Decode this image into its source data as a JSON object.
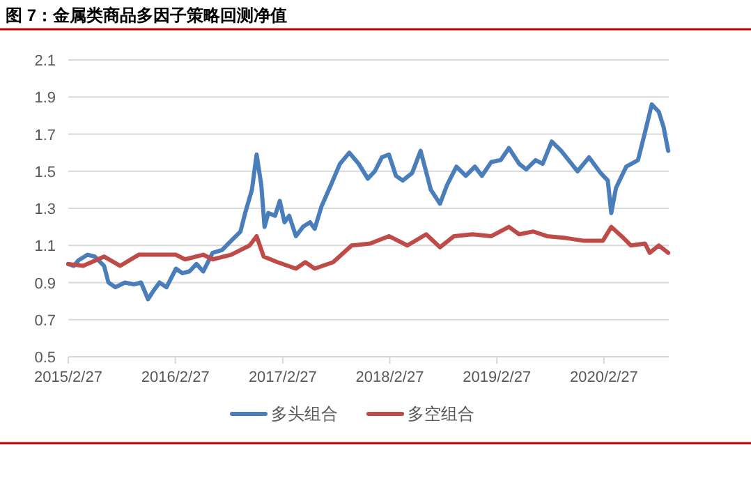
{
  "chart_data": {
    "type": "line",
    "title": "图 7：金属类商品多因子策略回测净值",
    "xlim": [
      "2015-02-27",
      "2020-10-05"
    ],
    "xticks": [
      {
        "value": "2015-02-27",
        "label": "2015/2/27"
      },
      {
        "value": "2016-02-27",
        "label": "2016/2/27"
      },
      {
        "value": "2017-02-27",
        "label": "2017/2/27"
      },
      {
        "value": "2018-02-27",
        "label": "2018/2/27"
      },
      {
        "value": "2019-02-27",
        "label": "2019/2/27"
      },
      {
        "value": "2020-02-27",
        "label": "2020/2/27"
      }
    ],
    "ylim": [
      0.5,
      2.1
    ],
    "yticks": [
      {
        "value": 0.5,
        "label": "0.5"
      },
      {
        "value": 0.7,
        "label": "0.7"
      },
      {
        "value": 0.9,
        "label": "0.9"
      },
      {
        "value": 1.1,
        "label": "1.1"
      },
      {
        "value": 1.3,
        "label": "1.3"
      },
      {
        "value": 1.5,
        "label": "1.5"
      },
      {
        "value": 1.7,
        "label": "1.7"
      },
      {
        "value": 1.9,
        "label": "1.9"
      },
      {
        "value": 2.1,
        "label": "2.1"
      }
    ],
    "grid": "y",
    "legend": "bottom",
    "line_style": "solid",
    "series": [
      {
        "name": "多头组合",
        "color": "#4a7ebb",
        "x": [
          "2015-02-27",
          "2015-03-18",
          "2015-04-03",
          "2015-05-04",
          "2015-05-28",
          "2015-06-29",
          "2015-07-14",
          "2015-08-07",
          "2015-09-08",
          "2015-10-09",
          "2015-11-02",
          "2015-11-26",
          "2015-12-12",
          "2016-01-04",
          "2016-01-28",
          "2016-02-29",
          "2016-03-22",
          "2016-04-15",
          "2016-05-09",
          "2016-06-01",
          "2016-07-03",
          "2016-08-04",
          "2016-09-04",
          "2016-10-06",
          "2016-10-22",
          "2016-11-14",
          "2016-11-30",
          "2016-12-16",
          "2016-12-27",
          "2017-01-09",
          "2017-02-01",
          "2017-02-17",
          "2017-03-05",
          "2017-03-21",
          "2017-04-13",
          "2017-05-07",
          "2017-05-31",
          "2017-06-16",
          "2017-07-09",
          "2017-08-10",
          "2017-09-10",
          "2017-10-12",
          "2017-11-13",
          "2017-12-14",
          "2018-01-07",
          "2018-01-31",
          "2018-02-24",
          "2018-03-20",
          "2018-04-12",
          "2018-05-14",
          "2018-06-12",
          "2018-07-17",
          "2018-08-17",
          "2018-09-10",
          "2018-10-12",
          "2018-11-13",
          "2018-12-14",
          "2019-01-07",
          "2019-02-08",
          "2019-03-12",
          "2019-04-09",
          "2019-05-14",
          "2019-06-07",
          "2019-07-09",
          "2019-08-02",
          "2019-09-02",
          "2019-10-04",
          "2019-11-29",
          "2020-01-07",
          "2020-02-16",
          "2020-03-11",
          "2020-03-23",
          "2020-04-08",
          "2020-05-13",
          "2020-06-22",
          "2020-07-16",
          "2020-08-08",
          "2020-09-01",
          "2020-09-17",
          "2020-10-03"
        ],
        "values": [
          1.0,
          0.99,
          1.02,
          1.05,
          1.04,
          0.99,
          0.9,
          0.875,
          0.9,
          0.89,
          0.9,
          0.81,
          0.85,
          0.9,
          0.875,
          0.975,
          0.95,
          0.96,
          1.0,
          0.96,
          1.06,
          1.075,
          1.125,
          1.175,
          1.275,
          1.4,
          1.59,
          1.425,
          1.2,
          1.275,
          1.26,
          1.34,
          1.225,
          1.26,
          1.15,
          1.2,
          1.225,
          1.19,
          1.31,
          1.425,
          1.54,
          1.6,
          1.54,
          1.46,
          1.5,
          1.575,
          1.59,
          1.475,
          1.45,
          1.49,
          1.61,
          1.4,
          1.325,
          1.425,
          1.525,
          1.475,
          1.525,
          1.475,
          1.55,
          1.56,
          1.625,
          1.54,
          1.51,
          1.56,
          1.54,
          1.66,
          1.61,
          1.5,
          1.575,
          1.49,
          1.45,
          1.275,
          1.41,
          1.525,
          1.56,
          1.71,
          1.86,
          1.82,
          1.74,
          1.61
        ]
      },
      {
        "name": "多空组合",
        "color": "#be4b48",
        "x": [
          "2015-02-27",
          "2015-04-19",
          "2015-06-29",
          "2015-08-23",
          "2015-10-25",
          "2015-12-27",
          "2016-02-29",
          "2016-03-31",
          "2016-06-01",
          "2016-07-03",
          "2016-09-04",
          "2016-11-06",
          "2016-11-30",
          "2016-12-24",
          "2017-02-09",
          "2017-04-13",
          "2017-05-15",
          "2017-06-16",
          "2017-08-18",
          "2017-10-20",
          "2017-12-22",
          "2018-02-24",
          "2018-04-28",
          "2018-07-01",
          "2018-08-17",
          "2018-10-04",
          "2018-12-06",
          "2019-02-08",
          "2019-04-09",
          "2019-05-14",
          "2019-07-01",
          "2019-08-17",
          "2019-10-20",
          "2019-12-22",
          "2020-02-23",
          "2020-03-23",
          "2020-04-27",
          "2020-05-29",
          "2020-07-16",
          "2020-08-01",
          "2020-09-01",
          "2020-10-03"
        ],
        "values": [
          1.0,
          0.99,
          1.04,
          0.99,
          1.05,
          1.05,
          1.05,
          1.025,
          1.05,
          1.025,
          1.05,
          1.1,
          1.15,
          1.04,
          1.01,
          0.975,
          1.01,
          0.975,
          1.01,
          1.1,
          1.11,
          1.15,
          1.1,
          1.16,
          1.09,
          1.15,
          1.16,
          1.15,
          1.2,
          1.16,
          1.175,
          1.15,
          1.14,
          1.125,
          1.125,
          1.2,
          1.15,
          1.1,
          1.11,
          1.06,
          1.1,
          1.06
        ]
      }
    ]
  }
}
